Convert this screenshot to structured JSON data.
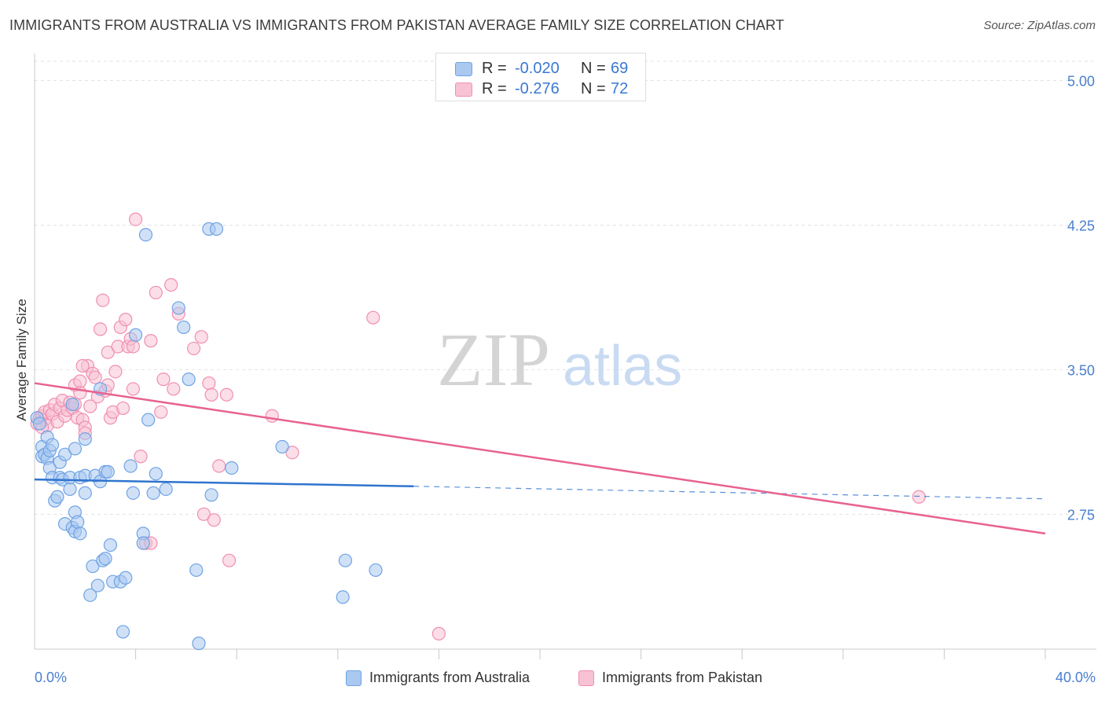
{
  "title": "IMMIGRANTS FROM AUSTRALIA VS IMMIGRANTS FROM PAKISTAN AVERAGE FAMILY SIZE CORRELATION CHART",
  "source": "Source: ZipAtlas.com",
  "watermark": {
    "zip": "ZIP",
    "atlas": "atlas"
  },
  "legend_top": [
    {
      "r_label": "R =",
      "r_value": "-0.020",
      "n_label": "N =",
      "n_value": "69"
    },
    {
      "r_label": "R =",
      "r_value": "-0.276",
      "n_label": "N =",
      "n_value": "72"
    }
  ],
  "chart_data": {
    "type": "scatter",
    "title": "IMMIGRANTS FROM AUSTRALIA VS IMMIGRANTS FROM PAKISTAN AVERAGE FAMILY SIZE CORRELATION CHART",
    "xlabel": "",
    "ylabel": "Average Family Size",
    "xlim": [
      0,
      40
    ],
    "ylim": [
      2.05,
      5.1
    ],
    "x_tick_labels": [
      "0.0%",
      "40.0%"
    ],
    "y_ticks": [
      2.75,
      3.5,
      4.25,
      5.0
    ],
    "y_tick_labels": [
      "2.75",
      "3.50",
      "4.25",
      "5.00"
    ],
    "grid": true,
    "series": [
      {
        "name": "Immigrants from Australia",
        "color": "#6fa3e4",
        "fill": "#aac9f0",
        "line_color": "#2f74cf",
        "trend": {
          "x1": 0,
          "y1": 2.93,
          "x2": 15.0,
          "y2": 2.895,
          "dash_to_x": 40,
          "dash_to_y": 2.83
        },
        "points": [
          [
            0.1,
            3.25
          ],
          [
            0.2,
            3.22
          ],
          [
            0.3,
            3.1
          ],
          [
            0.3,
            3.05
          ],
          [
            0.4,
            3.06
          ],
          [
            0.5,
            3.04
          ],
          [
            0.6,
            3.08
          ],
          [
            0.5,
            3.15
          ],
          [
            0.7,
            3.11
          ],
          [
            0.6,
            2.99
          ],
          [
            0.7,
            2.94
          ],
          [
            0.8,
            2.82
          ],
          [
            0.9,
            2.84
          ],
          [
            1.0,
            3.02
          ],
          [
            1.0,
            2.94
          ],
          [
            1.1,
            2.93
          ],
          [
            1.2,
            3.06
          ],
          [
            1.2,
            2.7
          ],
          [
            1.4,
            2.88
          ],
          [
            1.4,
            2.94
          ],
          [
            1.5,
            2.68
          ],
          [
            1.6,
            2.66
          ],
          [
            1.6,
            2.76
          ],
          [
            1.7,
            2.71
          ],
          [
            1.8,
            2.65
          ],
          [
            1.8,
            2.94
          ],
          [
            2.0,
            2.95
          ],
          [
            2.0,
            2.86
          ],
          [
            1.6,
            3.09
          ],
          [
            2.2,
            2.33
          ],
          [
            2.3,
            2.48
          ],
          [
            2.4,
            2.95
          ],
          [
            2.5,
            2.38
          ],
          [
            2.6,
            2.92
          ],
          [
            2.7,
            2.51
          ],
          [
            2.8,
            2.52
          ],
          [
            2.6,
            3.4
          ],
          [
            2.8,
            2.97
          ],
          [
            2.9,
            2.97
          ],
          [
            3.0,
            2.59
          ],
          [
            3.1,
            2.4
          ],
          [
            3.4,
            2.4
          ],
          [
            3.5,
            2.14
          ],
          [
            3.6,
            2.42
          ],
          [
            3.8,
            3.0
          ],
          [
            3.9,
            2.86
          ],
          [
            4.0,
            3.68
          ],
          [
            4.3,
            2.65
          ],
          [
            4.3,
            2.6
          ],
          [
            4.5,
            3.24
          ],
          [
            4.4,
            4.2
          ],
          [
            4.8,
            2.96
          ],
          [
            4.7,
            2.86
          ],
          [
            5.2,
            2.88
          ],
          [
            5.7,
            3.82
          ],
          [
            5.9,
            3.72
          ],
          [
            6.1,
            3.45
          ],
          [
            6.4,
            2.46
          ],
          [
            6.5,
            2.08
          ],
          [
            6.9,
            4.23
          ],
          [
            7.2,
            4.23
          ],
          [
            7.0,
            2.85
          ],
          [
            7.8,
            2.99
          ],
          [
            9.8,
            3.1
          ],
          [
            12.3,
            2.51
          ],
          [
            12.2,
            2.32
          ],
          [
            13.5,
            2.46
          ],
          [
            2.0,
            3.14
          ],
          [
            1.5,
            3.32
          ]
        ]
      },
      {
        "name": "Immigrants from Pakistan",
        "color": "#f08fb0",
        "fill": "#f8c2d4",
        "line_color": "#e8628f",
        "trend": {
          "x1": 0,
          "y1": 3.43,
          "x2": 40,
          "y2": 2.65
        },
        "points": [
          [
            0.1,
            3.22
          ],
          [
            0.2,
            3.25
          ],
          [
            0.3,
            3.26
          ],
          [
            0.4,
            3.24
          ],
          [
            0.4,
            3.28
          ],
          [
            0.5,
            3.21
          ],
          [
            0.6,
            3.29
          ],
          [
            0.7,
            3.27
          ],
          [
            0.8,
            3.32
          ],
          [
            0.9,
            3.23
          ],
          [
            1.0,
            3.3
          ],
          [
            1.1,
            3.34
          ],
          [
            1.2,
            3.26
          ],
          [
            1.3,
            3.29
          ],
          [
            1.4,
            3.33
          ],
          [
            1.5,
            3.3
          ],
          [
            1.6,
            3.32
          ],
          [
            1.7,
            3.25
          ],
          [
            1.6,
            3.42
          ],
          [
            1.8,
            3.44
          ],
          [
            1.8,
            3.38
          ],
          [
            1.9,
            3.24
          ],
          [
            2.0,
            3.2
          ],
          [
            2.0,
            3.17
          ],
          [
            2.1,
            3.52
          ],
          [
            2.2,
            3.31
          ],
          [
            2.3,
            3.48
          ],
          [
            2.4,
            3.46
          ],
          [
            2.5,
            3.36
          ],
          [
            2.6,
            3.71
          ],
          [
            2.7,
            3.86
          ],
          [
            2.8,
            3.39
          ],
          [
            2.9,
            3.59
          ],
          [
            3.0,
            3.25
          ],
          [
            3.1,
            3.28
          ],
          [
            3.2,
            3.49
          ],
          [
            3.3,
            3.62
          ],
          [
            3.4,
            3.72
          ],
          [
            3.5,
            3.3
          ],
          [
            3.6,
            3.76
          ],
          [
            3.7,
            3.62
          ],
          [
            3.8,
            3.66
          ],
          [
            3.9,
            3.4
          ],
          [
            3.9,
            3.62
          ],
          [
            4.0,
            4.28
          ],
          [
            4.2,
            3.05
          ],
          [
            4.4,
            2.6
          ],
          [
            4.6,
            2.6
          ],
          [
            4.6,
            3.65
          ],
          [
            4.8,
            3.9
          ],
          [
            5.0,
            3.28
          ],
          [
            5.1,
            3.45
          ],
          [
            5.4,
            3.94
          ],
          [
            5.5,
            3.4
          ],
          [
            5.7,
            3.79
          ],
          [
            6.3,
            3.61
          ],
          [
            6.6,
            3.67
          ],
          [
            6.7,
            2.75
          ],
          [
            6.9,
            3.43
          ],
          [
            7.1,
            2.72
          ],
          [
            7.0,
            3.37
          ],
          [
            7.3,
            3.0
          ],
          [
            7.6,
            3.37
          ],
          [
            7.7,
            2.51
          ],
          [
            9.4,
            3.26
          ],
          [
            10.2,
            3.07
          ],
          [
            13.4,
            3.77
          ],
          [
            16.0,
            2.13
          ],
          [
            35.0,
            2.84
          ],
          [
            0.3,
            3.2
          ],
          [
            1.9,
            3.52
          ],
          [
            2.9,
            3.42
          ]
        ]
      }
    ]
  }
}
